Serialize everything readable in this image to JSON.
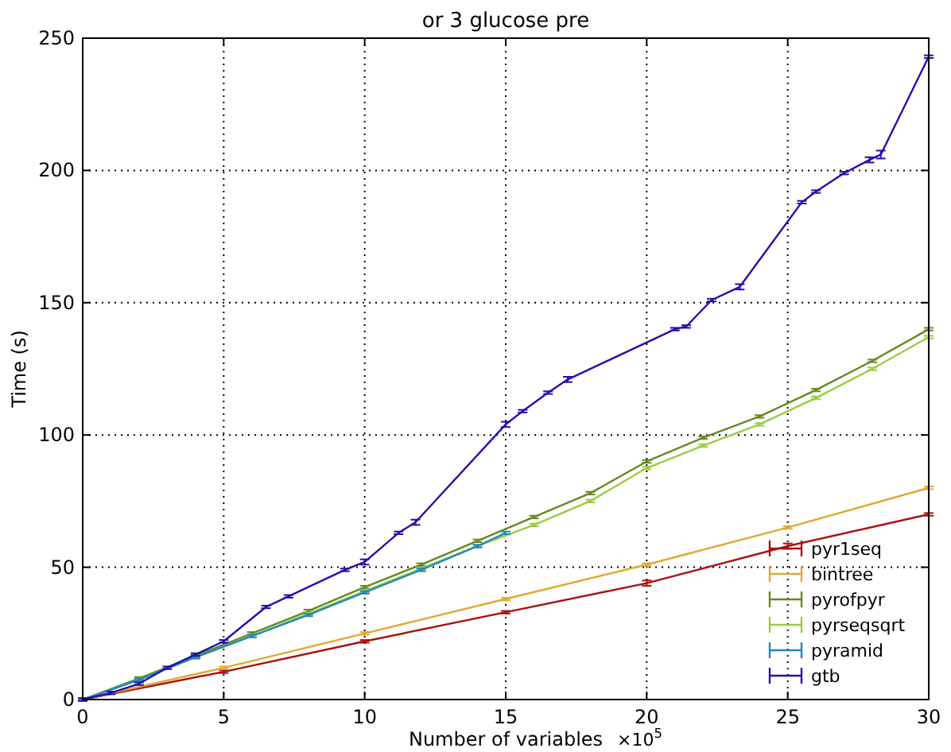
{
  "chart_data": {
    "type": "line",
    "title": "or 3 glucose pre",
    "xlabel": "Number of variables",
    "ylabel": "Time (s)",
    "annotations": [
      "×10$^{5}$"
    ],
    "xlim": [
      0,
      30
    ],
    "ylim": [
      0,
      250
    ],
    "xticks": [
      0,
      5,
      10,
      15,
      20,
      25,
      30
    ],
    "yticks": [
      0,
      50,
      100,
      150,
      200,
      250
    ],
    "grid": true,
    "legend": "bottom right",
    "line_style": "solid",
    "marker": "none",
    "series": [
      {
        "name": "pyr1seq",
        "color": "#aa1111",
        "x": [
          0,
          5,
          10,
          15,
          20,
          25,
          30
        ],
        "values": [
          0,
          10.5,
          22,
          33,
          44,
          58,
          70
        ],
        "errors": [
          0.5,
          0.5,
          0.5,
          0.5,
          1,
          1,
          0.5
        ]
      },
      {
        "name": "bintree",
        "color": "#ddaa33",
        "x": [
          0,
          5,
          10,
          15,
          20,
          25,
          30
        ],
        "values": [
          0,
          12,
          25,
          38,
          51,
          65,
          80
        ],
        "errors": [
          0.5,
          0.5,
          0.5,
          0.5,
          0.5,
          0.5,
          0.5
        ]
      },
      {
        "name": "pyrofpyr",
        "color": "#668822",
        "x": [
          0,
          2,
          4,
          6,
          8,
          10,
          12,
          14,
          16,
          18,
          20,
          22,
          24,
          26,
          28,
          30
        ],
        "values": [
          0,
          8,
          16.5,
          25,
          33.5,
          42.5,
          51,
          60,
          69,
          78,
          90,
          99,
          107,
          117,
          128,
          140
        ],
        "errors": [
          0.5,
          0.5,
          0.5,
          0.5,
          0.5,
          0.5,
          0.5,
          0.5,
          0.5,
          0.5,
          0.5,
          0.5,
          0.5,
          0.5,
          0.5,
          0.5
        ]
      },
      {
        "name": "pyrseqsqrt",
        "color": "#99cc44",
        "x": [
          0,
          2,
          4,
          6,
          8,
          10,
          12,
          14,
          16,
          18,
          20,
          22,
          24,
          26,
          28,
          30
        ],
        "values": [
          0,
          7.5,
          16,
          24,
          32.5,
          41,
          49.5,
          58,
          66,
          75,
          87.5,
          96,
          104,
          114,
          125,
          137
        ],
        "errors": [
          0.5,
          0.5,
          0.5,
          0.5,
          0.5,
          0.5,
          0.5,
          0.5,
          0.5,
          0.5,
          0.5,
          0.5,
          0.5,
          0.5,
          0.5,
          0.5
        ]
      },
      {
        "name": "pyramid",
        "color": "#2288bb",
        "x": [
          0,
          2,
          4,
          6,
          8,
          10,
          12,
          14,
          15
        ],
        "values": [
          0,
          7.5,
          16,
          24,
          32,
          40.5,
          49,
          58,
          63
        ],
        "errors": [
          0.5,
          0.5,
          0.5,
          0.5,
          0.5,
          0.5,
          0.5,
          0.5,
          0.5
        ]
      },
      {
        "name": "gtb",
        "color": "#2211aa",
        "x": [
          0,
          1,
          2,
          3,
          4,
          5,
          6.5,
          7.3,
          9.3,
          10,
          11.2,
          11.8,
          15,
          15.6,
          16.5,
          17.2,
          21,
          21.4,
          22.3,
          23.3,
          25.5,
          26,
          27,
          27.9,
          28.3,
          30
        ],
        "values": [
          0,
          2.5,
          6,
          12,
          17,
          22,
          35,
          39,
          49,
          52,
          63,
          67,
          104,
          109,
          116,
          121,
          140,
          141,
          151,
          156,
          188,
          192,
          199,
          204,
          206,
          243
        ],
        "errors": [
          0.5,
          0.5,
          0.5,
          0.5,
          0.5,
          0.5,
          0.5,
          0.5,
          0.5,
          1,
          0.5,
          1,
          1,
          0.5,
          0.5,
          1,
          0.5,
          0.5,
          0.5,
          1,
          0.5,
          0.5,
          0.5,
          1,
          1.5,
          0.5
        ]
      }
    ]
  }
}
